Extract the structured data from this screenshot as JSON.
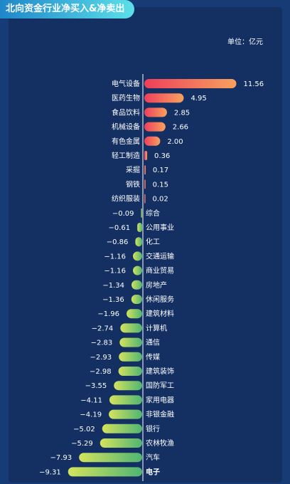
{
  "header": {
    "title": "北向资金行业净买入&净卖出"
  },
  "unit_label": "单位：亿元",
  "colors": {
    "positive_start": "#ee3f5b",
    "positive_end": "#f7a25e",
    "negative_start": "#d4e35c",
    "negative_end": "#4fb573",
    "axis": "#ffffff"
  },
  "chart_data": {
    "type": "bar",
    "orientation": "horizontal",
    "title": "北向资金行业净买入&净卖出",
    "unit": "单位：亿元",
    "categories": [
      "电气设备",
      "医药生物",
      "食品饮料",
      "机械设备",
      "有色金属",
      "轻工制造",
      "采掘",
      "钢铁",
      "纺织服装",
      "综合",
      "公用事业",
      "化工",
      "交通运输",
      "商业贸易",
      "房地产",
      "休闲服务",
      "建筑材料",
      "计算机",
      "通信",
      "传媒",
      "建筑装饰",
      "国防军工",
      "家用电器",
      "非银金融",
      "银行",
      "农林牧渔",
      "汽车",
      "电子"
    ],
    "values": [
      11.56,
      4.95,
      2.85,
      2.66,
      2.0,
      0.36,
      0.17,
      0.15,
      0.02,
      -0.09,
      -0.61,
      -0.86,
      -1.16,
      -1.16,
      -1.34,
      -1.36,
      -1.96,
      -2.74,
      -2.83,
      -2.93,
      -2.98,
      -3.55,
      -4.11,
      -4.19,
      -5.02,
      -5.29,
      -7.93,
      -9.31
    ],
    "value_labels": [
      "11.56",
      "4.95",
      "2.85",
      "2.66",
      "2.00",
      "0.36",
      "0.17",
      "0.15",
      "0.02",
      "−0.09",
      "−0.61",
      "−0.86",
      "−1.16",
      "−1.16",
      "−1.34",
      "−1.36",
      "−1.96",
      "−2.74",
      "−2.83",
      "−2.93",
      "−2.98",
      "−3.55",
      "−4.11",
      "−4.19",
      "−5.02",
      "−5.29",
      "−7.93",
      "−9.31"
    ],
    "grid": false
  }
}
